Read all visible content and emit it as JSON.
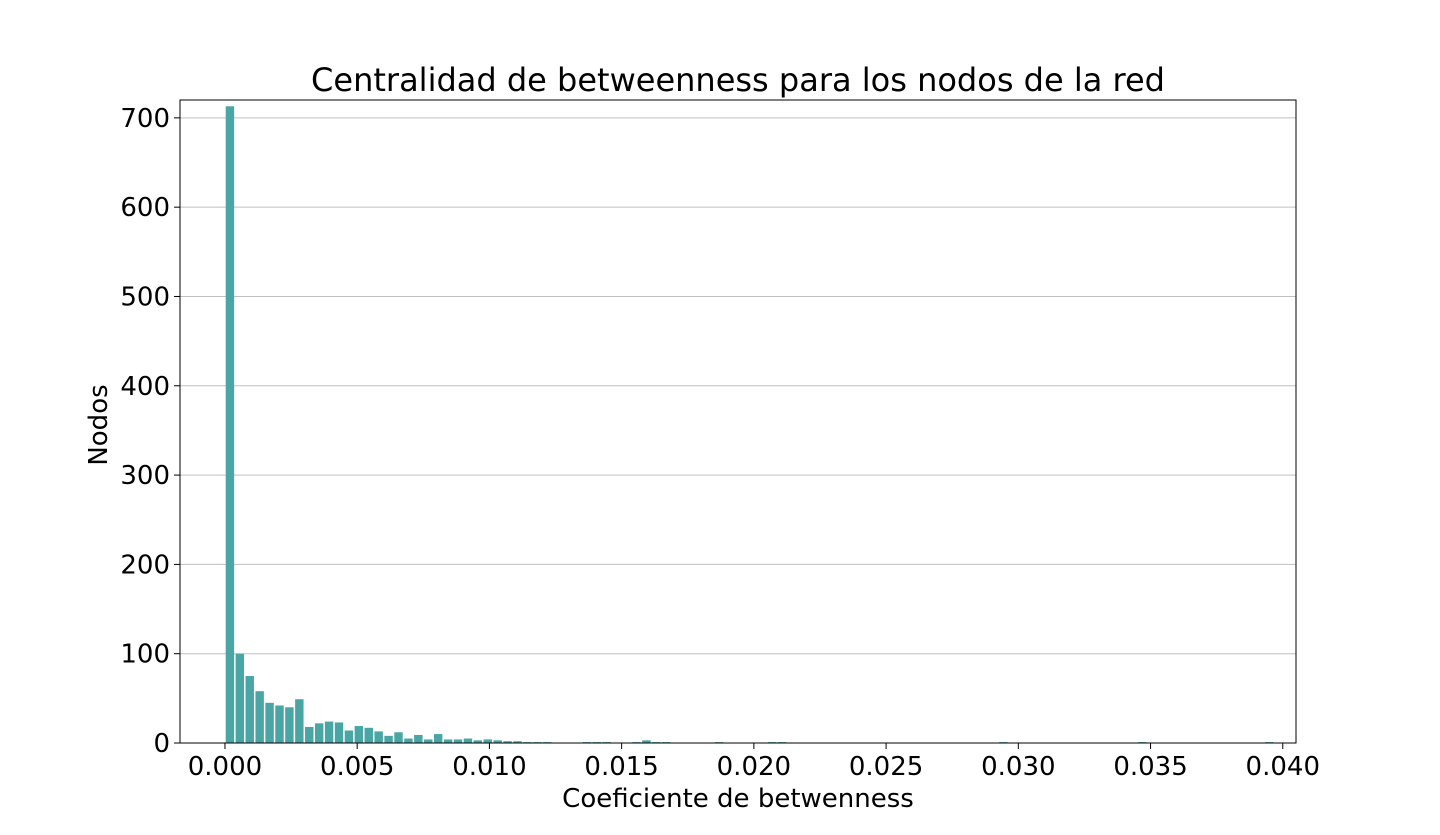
{
  "chart_data": {
    "type": "bar",
    "title": "Centralidad de betweenness para los nodos de la red",
    "xlabel": "Coeficiente de betwenness",
    "ylabel": "Nodos",
    "xlim": [
      -0.0017,
      0.0405
    ],
    "ylim": [
      0,
      720
    ],
    "xticks": [
      0.0,
      0.005,
      0.01,
      0.015,
      0.02,
      0.025,
      0.03,
      0.035,
      0.04
    ],
    "xtick_labels": [
      "0.000",
      "0.005",
      "0.010",
      "0.015",
      "0.020",
      "0.025",
      "0.030",
      "0.035",
      "0.040"
    ],
    "yticks": [
      0,
      100,
      200,
      300,
      400,
      500,
      600,
      700
    ],
    "ytick_labels": [
      "0",
      "100",
      "200",
      "300",
      "400",
      "500",
      "600",
      "700"
    ],
    "grid": "y",
    "bar_color": "#4aa5a5",
    "bin_width": 0.000375,
    "bin_starts": [
      0.0,
      0.000375,
      0.00075,
      0.001125,
      0.0015,
      0.001875,
      0.00225,
      0.002625,
      0.003,
      0.003375,
      0.00375,
      0.004125,
      0.0045,
      0.004875,
      0.00525,
      0.005625,
      0.006,
      0.006375,
      0.00675,
      0.007125,
      0.0075,
      0.007875,
      0.00825,
      0.008625,
      0.009,
      0.009375,
      0.00975,
      0.010125,
      0.0105,
      0.010875,
      0.01125,
      0.011625,
      0.012,
      0.0135,
      0.013875,
      0.01425,
      0.015375,
      0.01575,
      0.016125,
      0.0165,
      0.0185,
      0.0205,
      0.020875,
      0.02925,
      0.0345,
      0.0393
    ],
    "values": [
      713,
      100,
      75,
      58,
      45,
      42,
      40,
      49,
      18,
      22,
      24,
      23,
      14,
      19,
      17,
      13,
      8,
      12,
      5,
      9,
      4,
      10,
      4,
      4,
      5,
      3,
      4,
      3,
      2,
      2,
      1,
      1,
      1,
      1,
      1,
      1,
      1,
      3,
      1,
      1,
      1,
      1,
      1,
      1,
      1,
      1
    ]
  }
}
